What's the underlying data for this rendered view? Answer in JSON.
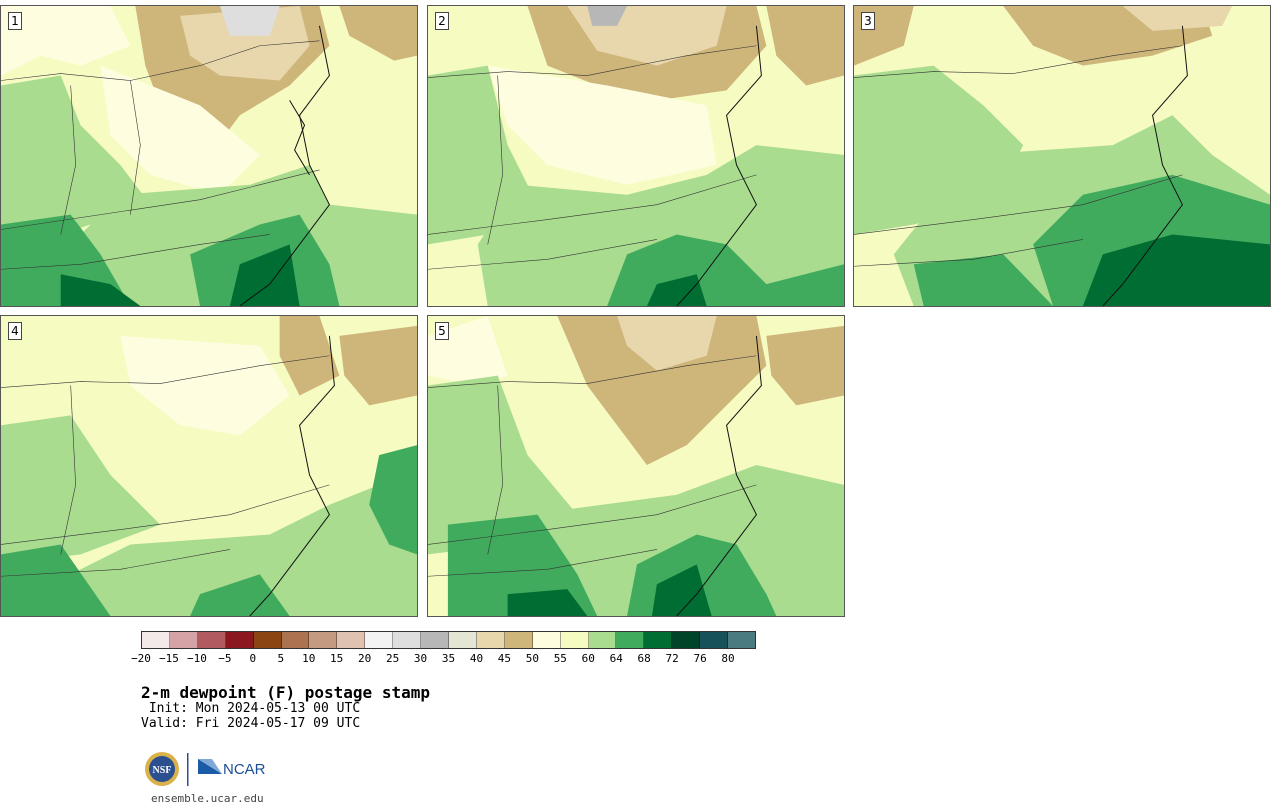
{
  "panels": [
    {
      "label": "1"
    },
    {
      "label": "2"
    },
    {
      "label": "3"
    },
    {
      "label": "4"
    },
    {
      "label": "5"
    }
  ],
  "colorbar": {
    "colors": [
      "#f3e9e9",
      "#d5a2a6",
      "#b15a60",
      "#8b1820",
      "#8b4513",
      "#ad7250",
      "#c49a80",
      "#e0c2b0",
      "#f3f3f3",
      "#dedede",
      "#b7b7b7",
      "#e5e5d4",
      "#e8d7ad",
      "#ceb57a",
      "#fffde0",
      "#f6fbc2",
      "#a9dc8f",
      "#41ab5d",
      "#006d32",
      "#00442a",
      "#17525a",
      "#4a7b80"
    ],
    "tick_labels": [
      "−20",
      "−15",
      "−10",
      "−5",
      "0",
      "5",
      "10",
      "15",
      "20",
      "25",
      "30",
      "35",
      "40",
      "45",
      "50",
      "55",
      "60",
      "64",
      "68",
      "72",
      "76",
      "80"
    ]
  },
  "title": "2-m dewpoint (F) postage stamp",
  "init": " Init: Mon 2024-05-13 00 UTC",
  "valid": "Valid: Fri 2024-05-17 09 UTC",
  "logos": {
    "nsf": "NSF",
    "ncar": "NCAR"
  },
  "site": "ensemble.ucar.edu"
}
